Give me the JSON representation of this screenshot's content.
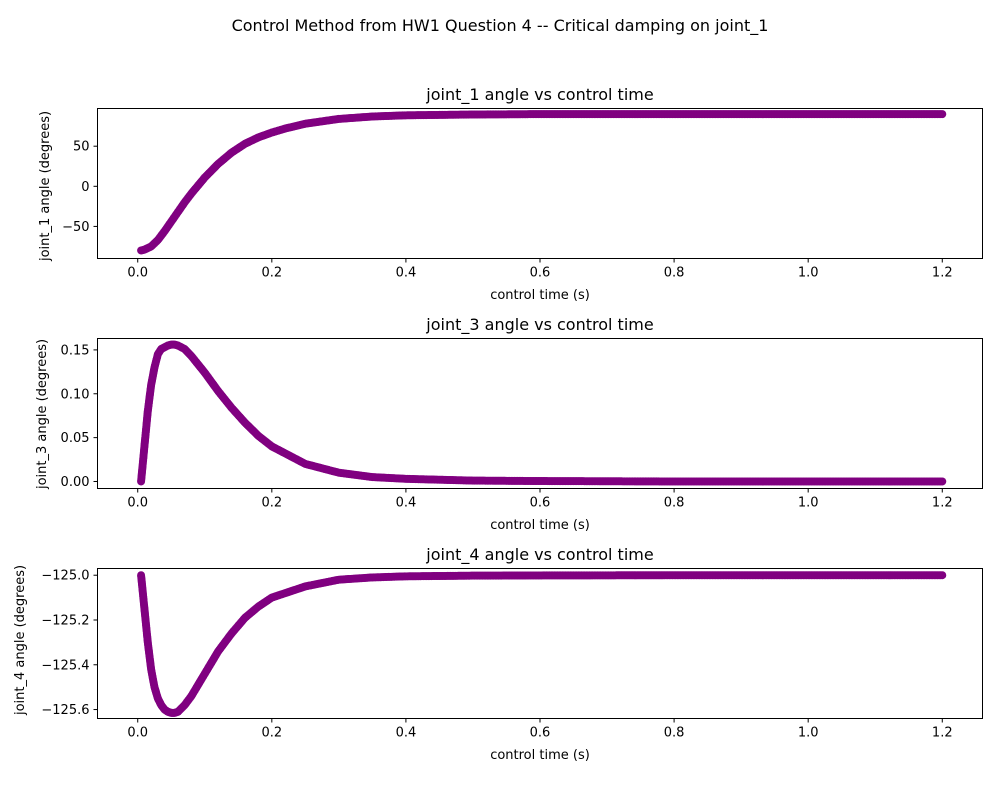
{
  "figure": {
    "suptitle": "Control Method from HW1 Question 4 -- Critical damping on joint_1"
  },
  "colors": {
    "marker": "#800080"
  },
  "chart_data": [
    {
      "type": "scatter",
      "title": "joint_1 angle vs control time",
      "xlabel": "control time (s)",
      "ylabel": "joint_1 angle (degrees)",
      "xlim": [
        -0.06,
        1.26
      ],
      "ylim": [
        -90,
        97
      ],
      "xticks": [
        0.0,
        0.2,
        0.4,
        0.6,
        0.8,
        1.0,
        1.2
      ],
      "xtick_labels": [
        "0.0",
        "0.2",
        "0.4",
        "0.6",
        "0.8",
        "1.0",
        "1.2"
      ],
      "yticks": [
        -50,
        0,
        50
      ],
      "ytick_labels": [
        "−50",
        "0",
        "50"
      ],
      "grid": false,
      "series": [
        {
          "x": [
            0.005,
            0.01,
            0.02,
            0.03,
            0.04,
            0.05,
            0.06,
            0.07,
            0.08,
            0.1,
            0.12,
            0.14,
            0.16,
            0.18,
            0.2,
            0.22,
            0.25,
            0.3,
            0.35,
            0.4,
            0.5,
            0.6,
            0.8,
            1.0,
            1.2
          ],
          "values": [
            -80,
            -79,
            -75,
            -67,
            -56,
            -44,
            -32,
            -20,
            -9,
            11,
            28,
            42,
            53,
            61,
            67,
            72,
            78,
            84,
            87,
            88.5,
            89.5,
            90,
            90,
            90,
            90
          ]
        }
      ]
    },
    {
      "type": "scatter",
      "title": "joint_3 angle vs control time",
      "xlabel": "control time (s)",
      "ylabel": "joint_3 angle (degrees)",
      "xlim": [
        -0.06,
        1.26
      ],
      "ylim": [
        -0.008,
        0.163
      ],
      "xticks": [
        0.0,
        0.2,
        0.4,
        0.6,
        0.8,
        1.0,
        1.2
      ],
      "xtick_labels": [
        "0.0",
        "0.2",
        "0.4",
        "0.6",
        "0.8",
        "1.0",
        "1.2"
      ],
      "yticks": [
        0.0,
        0.05,
        0.1,
        0.15
      ],
      "ytick_labels": [
        "0.00",
        "0.05",
        "0.10",
        "0.15"
      ],
      "grid": false,
      "series": [
        {
          "x": [
            0.005,
            0.01,
            0.015,
            0.02,
            0.025,
            0.03,
            0.035,
            0.04,
            0.045,
            0.05,
            0.055,
            0.06,
            0.07,
            0.08,
            0.1,
            0.12,
            0.14,
            0.16,
            0.18,
            0.2,
            0.25,
            0.3,
            0.35,
            0.4,
            0.5,
            0.6,
            0.8,
            1.0,
            1.2
          ],
          "values": [
            0.0,
            0.04,
            0.08,
            0.11,
            0.13,
            0.145,
            0.151,
            0.153,
            0.155,
            0.156,
            0.156,
            0.155,
            0.151,
            0.143,
            0.124,
            0.103,
            0.084,
            0.067,
            0.052,
            0.04,
            0.02,
            0.01,
            0.005,
            0.003,
            0.001,
            0.0005,
            0.0,
            0.0,
            0.0
          ]
        }
      ]
    },
    {
      "type": "scatter",
      "title": "joint_4 angle vs control time",
      "xlabel": "control time (s)",
      "ylabel": "joint_4 angle (degrees)",
      "xlim": [
        -0.06,
        1.26
      ],
      "ylim": [
        -125.64,
        -124.97
      ],
      "xticks": [
        0.0,
        0.2,
        0.4,
        0.6,
        0.8,
        1.0,
        1.2
      ],
      "xtick_labels": [
        "0.0",
        "0.2",
        "0.4",
        "0.6",
        "0.8",
        "1.0",
        "1.2"
      ],
      "yticks": [
        -125.0,
        -125.2,
        -125.4,
        -125.6
      ],
      "ytick_labels": [
        "−125.0",
        "−125.2",
        "−125.4",
        "−125.6"
      ],
      "grid": false,
      "series": [
        {
          "x": [
            0.005,
            0.01,
            0.015,
            0.02,
            0.025,
            0.03,
            0.035,
            0.04,
            0.045,
            0.05,
            0.055,
            0.06,
            0.07,
            0.08,
            0.1,
            0.12,
            0.14,
            0.16,
            0.18,
            0.2,
            0.25,
            0.3,
            0.35,
            0.4,
            0.5,
            0.6,
            0.8,
            1.0,
            1.2
          ],
          "values": [
            -125.0,
            -125.15,
            -125.3,
            -125.42,
            -125.5,
            -125.55,
            -125.58,
            -125.6,
            -125.61,
            -125.615,
            -125.615,
            -125.61,
            -125.58,
            -125.54,
            -125.44,
            -125.34,
            -125.26,
            -125.19,
            -125.14,
            -125.1,
            -125.05,
            -125.02,
            -125.01,
            -125.005,
            -125.002,
            -125.001,
            -125.0,
            -125.0,
            -125.0
          ]
        }
      ]
    }
  ]
}
